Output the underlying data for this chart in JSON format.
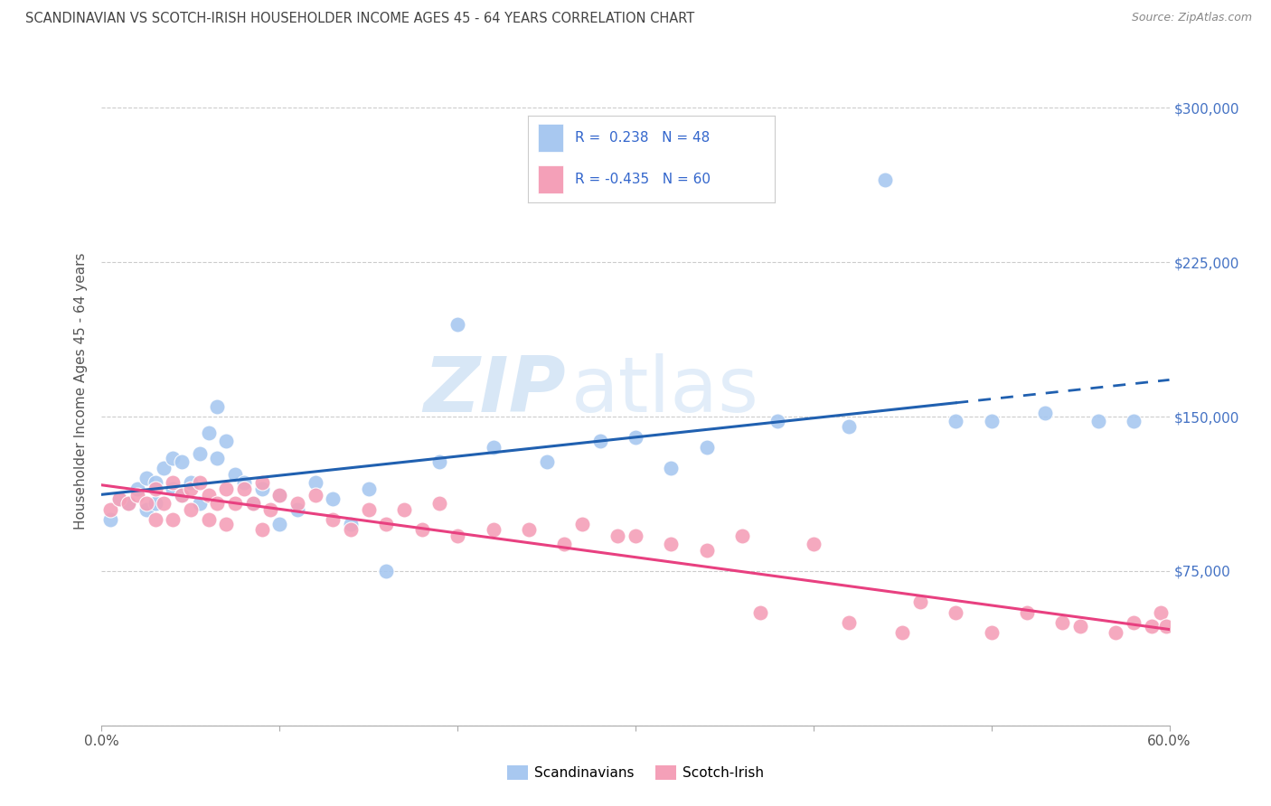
{
  "title": "SCANDINAVIAN VS SCOTCH-IRISH HOUSEHOLDER INCOME AGES 45 - 64 YEARS CORRELATION CHART",
  "source": "Source: ZipAtlas.com",
  "ylabel": "Householder Income Ages 45 - 64 years",
  "ylim": [
    0,
    325000
  ],
  "xlim": [
    0.0,
    0.6
  ],
  "yticks": [
    0,
    75000,
    150000,
    225000,
    300000
  ],
  "ytick_labels": [
    "",
    "$75,000",
    "$150,000",
    "$225,000",
    "$300,000"
  ],
  "xticks": [
    0.0,
    0.1,
    0.2,
    0.3,
    0.4,
    0.5,
    0.6
  ],
  "xtick_labels": [
    "0.0%",
    "",
    "",
    "",
    "",
    "",
    "60.0%"
  ],
  "R_scand": 0.238,
  "N_scand": 48,
  "R_scotch": -0.435,
  "N_scotch": 60,
  "color_scand": "#A8C8F0",
  "color_scotch": "#F4A0B8",
  "line_color_scand": "#2060B0",
  "line_color_scotch": "#E84080",
  "legend_label_scand": "Scandinavians",
  "legend_label_scotch": "Scotch-Irish",
  "watermark_zip": "ZIP",
  "watermark_atlas": "atlas",
  "scand_x": [
    0.005,
    0.01,
    0.015,
    0.02,
    0.025,
    0.025,
    0.03,
    0.03,
    0.035,
    0.04,
    0.04,
    0.045,
    0.045,
    0.05,
    0.055,
    0.055,
    0.06,
    0.065,
    0.065,
    0.07,
    0.075,
    0.08,
    0.085,
    0.09,
    0.1,
    0.1,
    0.11,
    0.12,
    0.13,
    0.14,
    0.15,
    0.16,
    0.19,
    0.2,
    0.22,
    0.25,
    0.28,
    0.3,
    0.32,
    0.34,
    0.38,
    0.42,
    0.44,
    0.48,
    0.5,
    0.53,
    0.56,
    0.58
  ],
  "scand_y": [
    100000,
    110000,
    108000,
    115000,
    105000,
    120000,
    118000,
    108000,
    125000,
    130000,
    115000,
    128000,
    112000,
    118000,
    132000,
    108000,
    142000,
    155000,
    130000,
    138000,
    122000,
    118000,
    108000,
    115000,
    112000,
    98000,
    105000,
    118000,
    110000,
    98000,
    115000,
    75000,
    128000,
    195000,
    135000,
    128000,
    138000,
    140000,
    125000,
    135000,
    148000,
    145000,
    265000,
    148000,
    148000,
    152000,
    148000,
    148000
  ],
  "scotch_x": [
    0.005,
    0.01,
    0.015,
    0.02,
    0.025,
    0.03,
    0.03,
    0.035,
    0.04,
    0.04,
    0.045,
    0.05,
    0.05,
    0.055,
    0.06,
    0.06,
    0.065,
    0.07,
    0.07,
    0.075,
    0.08,
    0.085,
    0.09,
    0.09,
    0.095,
    0.1,
    0.11,
    0.12,
    0.13,
    0.14,
    0.15,
    0.16,
    0.17,
    0.18,
    0.19,
    0.2,
    0.22,
    0.24,
    0.26,
    0.27,
    0.29,
    0.3,
    0.32,
    0.34,
    0.36,
    0.37,
    0.4,
    0.42,
    0.45,
    0.46,
    0.48,
    0.5,
    0.52,
    0.54,
    0.55,
    0.57,
    0.58,
    0.59,
    0.595,
    0.598
  ],
  "scotch_y": [
    105000,
    110000,
    108000,
    112000,
    108000,
    115000,
    100000,
    108000,
    118000,
    100000,
    112000,
    115000,
    105000,
    118000,
    112000,
    100000,
    108000,
    115000,
    98000,
    108000,
    115000,
    108000,
    118000,
    95000,
    105000,
    112000,
    108000,
    112000,
    100000,
    95000,
    105000,
    98000,
    105000,
    95000,
    108000,
    92000,
    95000,
    95000,
    88000,
    98000,
    92000,
    92000,
    88000,
    85000,
    92000,
    55000,
    88000,
    50000,
    45000,
    60000,
    55000,
    45000,
    55000,
    50000,
    48000,
    45000,
    50000,
    48000,
    55000,
    48000
  ]
}
